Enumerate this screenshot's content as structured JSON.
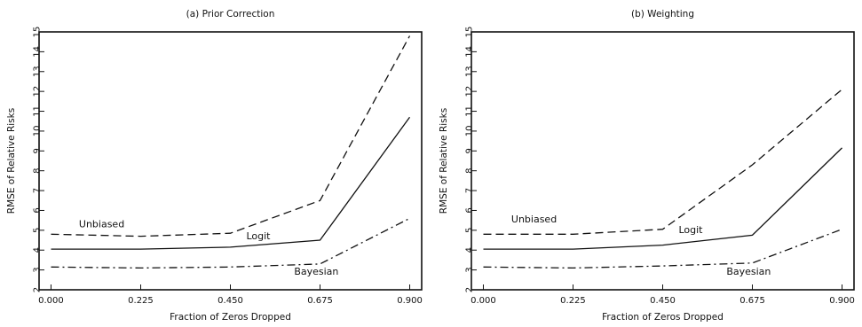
{
  "chart_data": [
    {
      "type": "line",
      "title": "(a) Prior Correction",
      "xlabel": "Fraction of Zeros Dropped",
      "ylabel": "RMSE of Relative Risks",
      "x": [
        0.0,
        0.225,
        0.45,
        0.675,
        0.9
      ],
      "xticks": [
        "0.000",
        "0.225",
        "0.450",
        "0.675",
        "0.900"
      ],
      "yticks": [
        "2",
        "3",
        "4",
        "5",
        "6",
        "7",
        "8",
        "9",
        "10",
        "11",
        "12",
        "13",
        "14",
        "15"
      ],
      "xlim": [
        -0.03,
        0.93
      ],
      "ylim": [
        2,
        15
      ],
      "grid": false,
      "series": [
        {
          "name": "Unbiased",
          "style": "dashed",
          "values": [
            4.8,
            4.7,
            4.85,
            6.5,
            14.8
          ]
        },
        {
          "name": "Logit",
          "style": "solid",
          "values": [
            4.05,
            4.05,
            4.15,
            4.5,
            10.7
          ]
        },
        {
          "name": "Bayesian",
          "style": "dashdot",
          "values": [
            3.15,
            3.1,
            3.15,
            3.3,
            5.6
          ]
        }
      ],
      "labels": [
        {
          "text": "Unbiased",
          "x": 0.07,
          "y": 5.15
        },
        {
          "text": "Logit",
          "x": 0.49,
          "y": 4.55
        },
        {
          "text": "Bayesian",
          "x": 0.61,
          "y": 2.75
        }
      ]
    },
    {
      "type": "line",
      "title": "(b) Weighting",
      "xlabel": "Fraction of Zeros Dropped",
      "ylabel": "RMSE of Relative Risks",
      "x": [
        0.0,
        0.225,
        0.45,
        0.675,
        0.9
      ],
      "xticks": [
        "0.000",
        "0.225",
        "0.450",
        "0.675",
        "0.900"
      ],
      "yticks": [
        "2",
        "3",
        "4",
        "5",
        "6",
        "7",
        "8",
        "9",
        "10",
        "11",
        "12",
        "13",
        "14",
        "15"
      ],
      "xlim": [
        -0.03,
        0.93
      ],
      "ylim": [
        2,
        15
      ],
      "grid": false,
      "series": [
        {
          "name": "Unbiased",
          "style": "dashed",
          "values": [
            4.8,
            4.8,
            5.05,
            8.3,
            12.1
          ]
        },
        {
          "name": "Logit",
          "style": "solid",
          "values": [
            4.05,
            4.05,
            4.25,
            4.75,
            9.15
          ]
        },
        {
          "name": "Bayesian",
          "style": "dashdot",
          "values": [
            3.15,
            3.1,
            3.2,
            3.35,
            5.05
          ]
        }
      ],
      "labels": [
        {
          "text": "Unbiased",
          "x": 0.07,
          "y": 5.4
        },
        {
          "text": "Logit",
          "x": 0.49,
          "y": 4.85
        },
        {
          "text": "Bayesian",
          "x": 0.61,
          "y": 2.75
        }
      ]
    }
  ]
}
